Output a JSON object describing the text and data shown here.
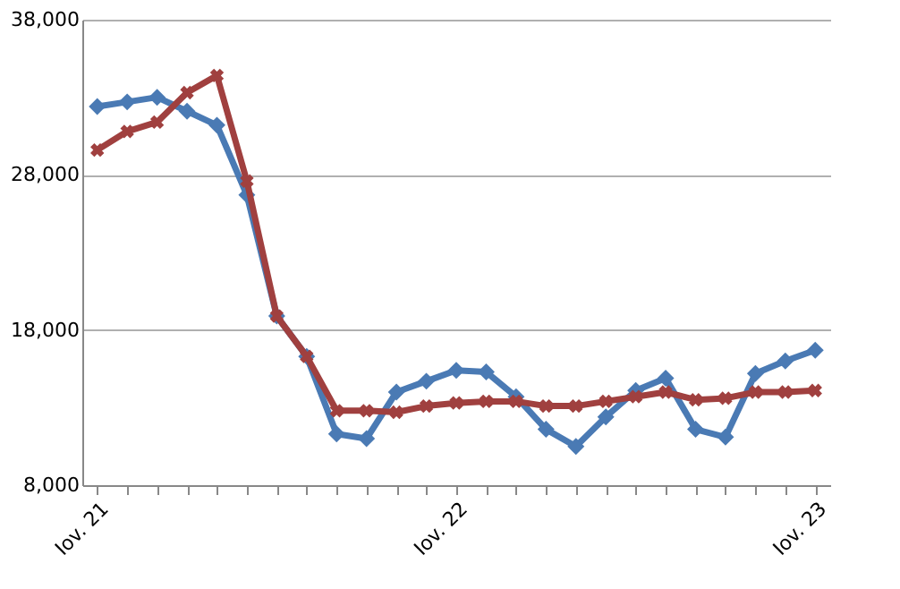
{
  "chart_data": {
    "type": "line",
    "categories": [
      "Iov. 21",
      null,
      null,
      null,
      null,
      null,
      null,
      null,
      null,
      null,
      null,
      null,
      "Iov. 22",
      null,
      null,
      null,
      null,
      null,
      null,
      null,
      null,
      null,
      null,
      null,
      "Iov. 23"
    ],
    "series": [
      {
        "color": "#4a7ab4",
        "marker": "diamond",
        "values": [
          32400,
          32700,
          33000,
          32100,
          31200,
          26700,
          18900,
          16300,
          11300,
          11000,
          14000,
          14700,
          15400,
          15300,
          13700,
          11600,
          10500,
          12400,
          14100,
          14900,
          11600,
          11100,
          15200,
          16000,
          16700
        ]
      },
      {
        "color": "#a0403f",
        "marker": "cross",
        "values": [
          29600,
          30800,
          31400,
          33300,
          34400,
          27600,
          18900,
          16300,
          12800,
          12800,
          12700,
          13100,
          13300,
          13400,
          13400,
          13100,
          13100,
          13400,
          13700,
          14000,
          13500,
          13600,
          14000,
          14000,
          14100
        ]
      }
    ],
    "ylim": [
      8000,
      38000
    ],
    "yticks": [
      {
        "value": 8000,
        "label": "8,000"
      },
      {
        "value": 18000,
        "label": "18,000"
      },
      {
        "value": 28000,
        "label": "28,000"
      },
      {
        "value": 38000,
        "label": "38,000"
      }
    ],
    "grid": "y",
    "line_style": "solid"
  }
}
